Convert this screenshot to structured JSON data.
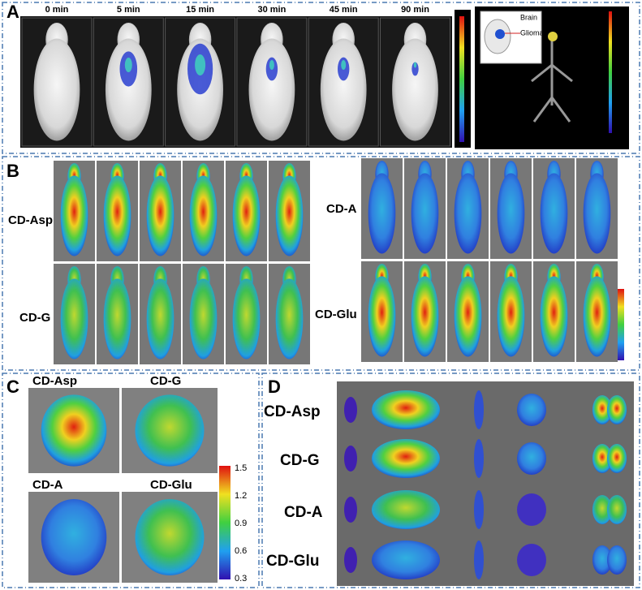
{
  "panel_a": {
    "label": "A",
    "time_points": [
      "0 min",
      "5 min",
      "15 min",
      "30 min",
      "45 min",
      "90 min"
    ],
    "inset_labels": [
      "Brain",
      "Glioma"
    ]
  },
  "panel_b": {
    "label": "B",
    "groups": [
      "CD-Asp",
      "CD-G",
      "CD-A",
      "CD-Glu"
    ]
  },
  "panel_c": {
    "label": "C",
    "groups": [
      "CD-Asp",
      "CD-G",
      "CD-A",
      "CD-Glu"
    ],
    "colorbar_ticks": [
      1.5,
      1.2,
      0.9,
      0.6,
      0.3
    ]
  },
  "panel_d": {
    "label": "D",
    "groups": [
      "CD-Asp",
      "CD-G",
      "CD-A",
      "CD-Glu"
    ]
  }
}
